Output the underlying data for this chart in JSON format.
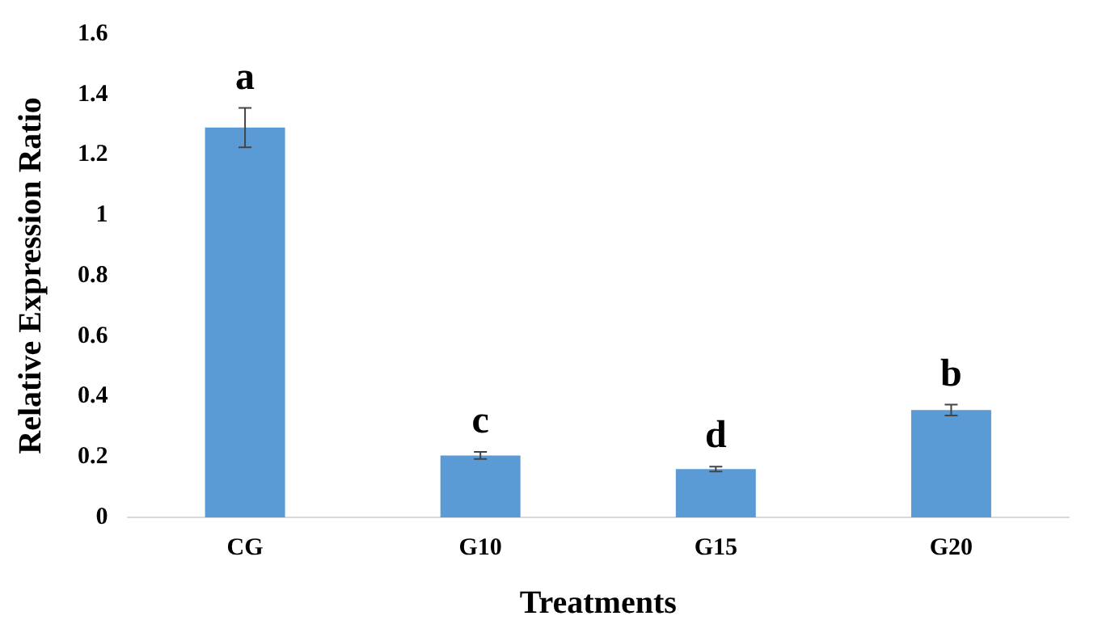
{
  "chart_data": {
    "type": "bar",
    "xlabel": "Treatments",
    "ylabel": "Relative Expression Ratio",
    "categories": [
      "CG",
      "G10",
      "G15",
      "G20"
    ],
    "values": [
      1.29,
      0.205,
      0.16,
      0.355
    ],
    "errors": [
      0.065,
      0.012,
      0.008,
      0.018
    ],
    "color": "#5b9bd5",
    "ylim": [
      0,
      1.6
    ],
    "yticks": [
      0,
      {
        "value": 0.2,
        "label": "0.2"
      },
      {
        "value": 0.4,
        "label": "0.4"
      },
      {
        "value": 0.6,
        "label": "0.6"
      },
      {
        "value": 0.8,
        "label": "0.8"
      },
      1,
      {
        "value": 1.2,
        "label": "1.2"
      },
      {
        "value": 1.4,
        "label": "1.4"
      },
      {
        "value": 1.6,
        "label": "1.6"
      }
    ],
    "grid": false,
    "legend": false,
    "annotations": [
      {
        "text": "a",
        "x": "CG",
        "y": 1.29
      },
      {
        "text": "c",
        "x": "G10",
        "y": 0.205
      },
      {
        "text": "d",
        "x": "G15",
        "y": 0.16
      },
      {
        "text": "b",
        "x": "G20",
        "y": 0.355
      }
    ]
  }
}
